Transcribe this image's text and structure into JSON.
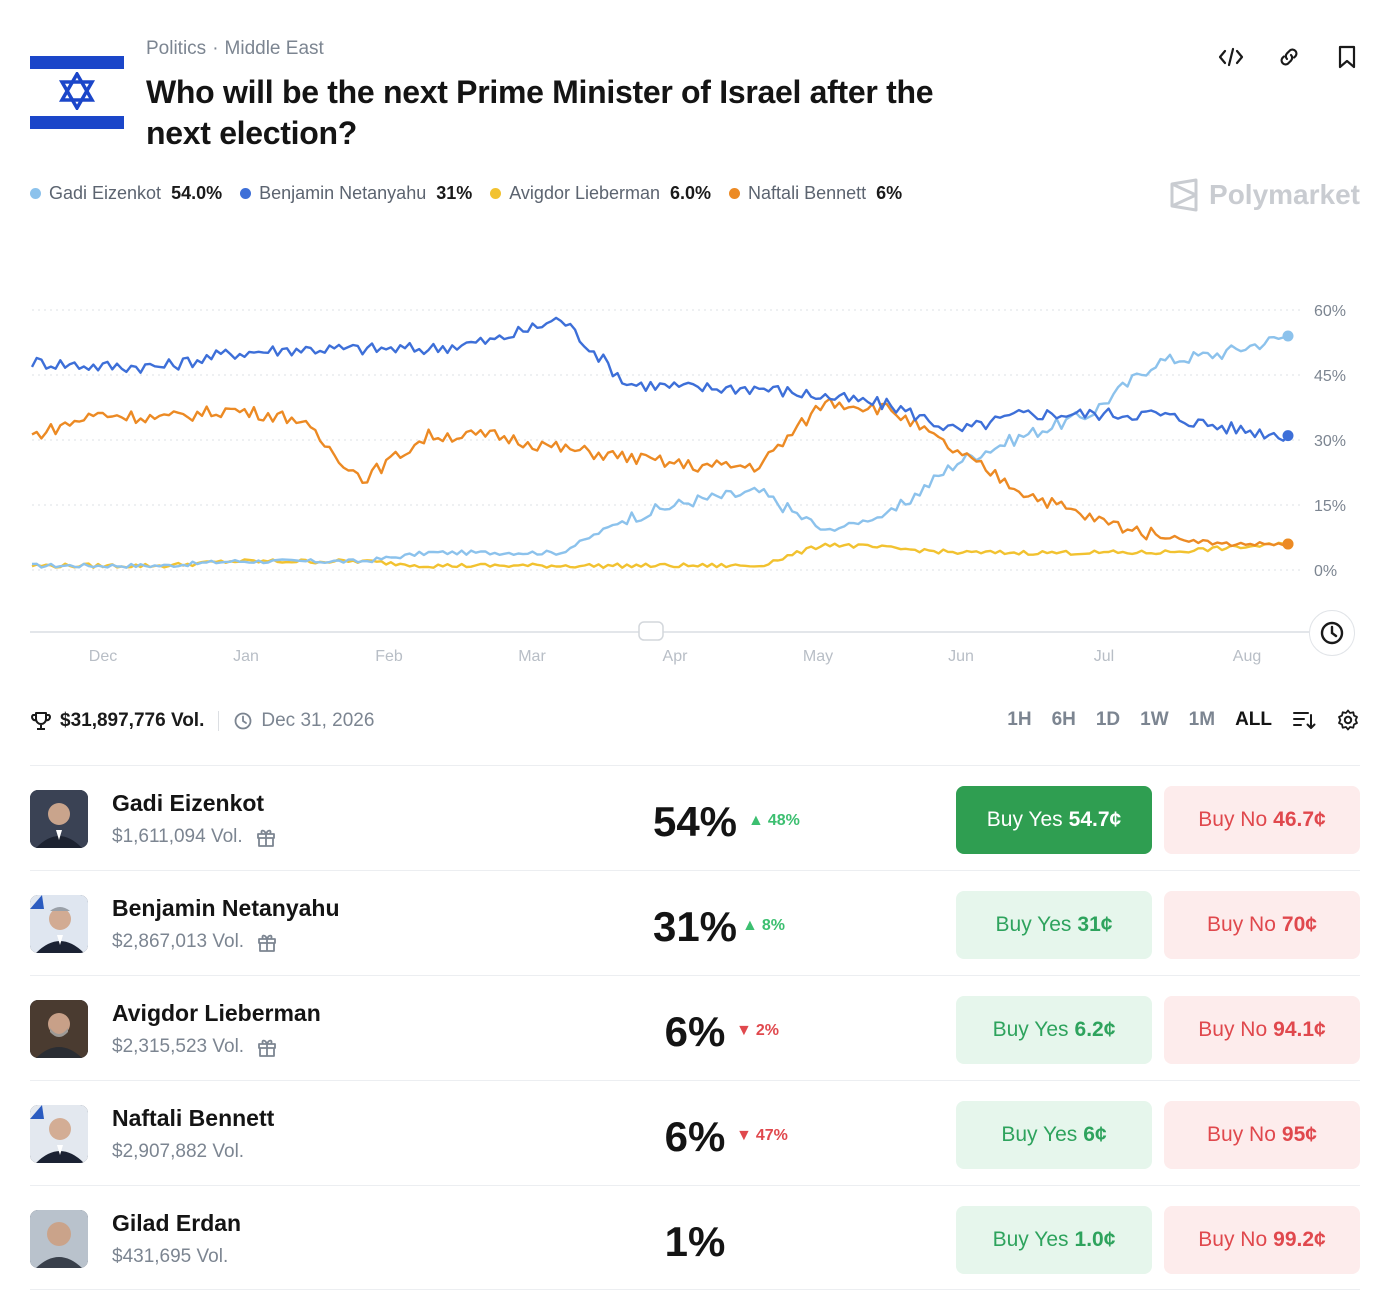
{
  "header": {
    "category": "Politics",
    "subcategory": "Middle East",
    "title": "Who will be the next Prime Minister of Israel after the next election?",
    "icons": [
      "embed-icon",
      "link-icon",
      "bookmark-icon"
    ]
  },
  "legend": [
    {
      "name": "Gadi Eizenkot",
      "value": "54.0%",
      "color": "#8cc2ec"
    },
    {
      "name": "Benjamin Netanyahu",
      "value": "31%",
      "color": "#3d6fd8"
    },
    {
      "name": "Avigdor Lieberman",
      "value": "6.0%",
      "color": "#f2c230"
    },
    {
      "name": "Naftali Bennett",
      "value": "6%",
      "color": "#ec8a24"
    }
  ],
  "brand": "Polymarket",
  "chart_data": {
    "type": "line",
    "x_ticks": [
      "Dec",
      "Jan",
      "Feb",
      "Mar",
      "Apr",
      "May",
      "Jun",
      "Jul",
      "Aug"
    ],
    "y_ticks": [
      "60%",
      "45%",
      "30%",
      "15%",
      "0%"
    ],
    "ylim": [
      0,
      60
    ],
    "x": [
      "Nov 25",
      "Dec 1",
      "Dec 15",
      "Jan 1",
      "Jan 15",
      "Feb 1",
      "Feb 15",
      "Mar 1",
      "Mar 15",
      "Apr 1",
      "Apr 15",
      "May 1",
      "May 15",
      "Jun 1",
      "Jun 15",
      "Jul 1",
      "Jul 15",
      "Aug 1",
      "Aug 15",
      "Aug 25"
    ],
    "series": [
      {
        "name": "Gadi Eizenkot",
        "color": "#8cc2ec",
        "values": [
          1,
          1,
          1,
          2,
          2,
          2,
          4,
          4,
          4,
          12,
          16,
          18,
          9,
          13,
          25,
          31,
          36,
          48,
          50,
          54
        ]
      },
      {
        "name": "Benjamin Netanyahu",
        "color": "#3d6fd8",
        "values": [
          48,
          47,
          47,
          50,
          51,
          51,
          51,
          53,
          58,
          43,
          42,
          42,
          40,
          38,
          32,
          36,
          36,
          36,
          33,
          31
        ]
      },
      {
        "name": "Avigdor Lieberman",
        "color": "#f2c230",
        "values": [
          1,
          1,
          1,
          2,
          2,
          2,
          1,
          1,
          1,
          1,
          1,
          1,
          6,
          5,
          4,
          4,
          4,
          4,
          5,
          6
        ]
      },
      {
        "name": "Naftali Bennett",
        "color": "#ec8a24",
        "values": [
          31,
          36,
          35,
          37,
          35,
          21,
          31,
          31,
          28,
          26,
          24,
          24,
          39,
          37,
          27,
          18,
          12,
          8,
          6,
          6
        ]
      }
    ]
  },
  "stats": {
    "volume": "$31,897,776 Vol.",
    "end_date": "Dec 31, 2026"
  },
  "ranges": [
    "1H",
    "6H",
    "1D",
    "1W",
    "1M",
    "ALL"
  ],
  "active_range": "ALL",
  "outcomes": [
    {
      "name": "Gadi Eizenkot",
      "volume": "$1,611,094 Vol.",
      "gift": true,
      "pct": "54%",
      "change": "48%",
      "dir": "up",
      "yes": "54.7¢",
      "no": "46.7¢",
      "primary": true
    },
    {
      "name": "Benjamin Netanyahu",
      "volume": "$2,867,013 Vol.",
      "gift": true,
      "pct": "31%",
      "change": "8%",
      "dir": "up",
      "yes": "31¢",
      "no": "70¢",
      "primary": false
    },
    {
      "name": "Avigdor Lieberman",
      "volume": "$2,315,523 Vol.",
      "gift": true,
      "pct": "6%",
      "change": "2%",
      "dir": "down",
      "yes": "6.2¢",
      "no": "94.1¢",
      "primary": false
    },
    {
      "name": "Naftali Bennett",
      "volume": "$2,907,882 Vol.",
      "gift": false,
      "pct": "6%",
      "change": "47%",
      "dir": "down",
      "yes": "6¢",
      "no": "95¢",
      "primary": false
    },
    {
      "name": "Gilad Erdan",
      "volume": "$431,695 Vol.",
      "gift": false,
      "pct": "1%",
      "change": "",
      "dir": "",
      "yes": "1.0¢",
      "no": "99.2¢",
      "primary": false
    }
  ],
  "buttons": {
    "yes_prefix": "Buy Yes",
    "no_prefix": "Buy No"
  }
}
